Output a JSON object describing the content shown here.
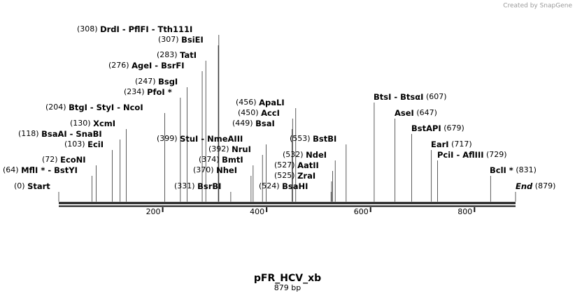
{
  "map": {
    "title": "pFR_HCV_xb",
    "length_label": "879 bp",
    "credit": "Created by SnapGene",
    "length": 879,
    "ticks": [
      200,
      400,
      600,
      800
    ],
    "sites": [
      {
        "pos": "(308)",
        "name": "DrdI  - PflFI  - Tth111I",
        "site": 308
      },
      {
        "pos": "(307)",
        "name": "BsiEI",
        "site": 307
      },
      {
        "pos": "(283)",
        "name": "TatI",
        "site": 283
      },
      {
        "pos": "(276)",
        "name": "AgeI  - BsrFI",
        "site": 276
      },
      {
        "pos": "(247)",
        "name": "BsgI",
        "site": 247
      },
      {
        "pos": "(234)",
        "name": "PfoI *",
        "site": 234
      },
      {
        "pos": "(204)",
        "name": "BtgI  - StyI  - NcoI",
        "site": 204
      },
      {
        "pos": "(130)",
        "name": "XcmI",
        "site": 130
      },
      {
        "pos": "(118)",
        "name": "BsaAI  - SnaBI",
        "site": 118
      },
      {
        "pos": "(103)",
        "name": "EciI",
        "site": 103
      },
      {
        "pos": "(72)",
        "name": "EcoNI",
        "site": 72
      },
      {
        "pos": "(64)",
        "name": "MflI *  - BstYI",
        "site": 64
      },
      {
        "pos": "(0)",
        "name": "Start",
        "site": 0
      },
      {
        "pos": "(399)",
        "name": "StuI  - NmeAIII",
        "site": 399
      },
      {
        "pos": "(392)",
        "name": "NruI",
        "site": 392
      },
      {
        "pos": "(374)",
        "name": "BmtI",
        "site": 374
      },
      {
        "pos": "(370)",
        "name": "NheI",
        "site": 370
      },
      {
        "pos": "(331)",
        "name": "BsrBI",
        "site": 331
      },
      {
        "pos": "(456)",
        "name": "ApaLI",
        "site": 456
      },
      {
        "pos": "(450)",
        "name": "AccI",
        "site": 450
      },
      {
        "pos": "(449)",
        "name": "BsaI",
        "site": 449
      },
      {
        "pos": "(553)",
        "name": "BstBI",
        "site": 553
      },
      {
        "pos": "(532)",
        "name": "NdeI",
        "site": 532
      },
      {
        "pos": "(527)",
        "name": "AatII",
        "site": 527
      },
      {
        "pos": "(525)",
        "name": "ZraI",
        "site": 525
      },
      {
        "pos": "(524)",
        "name": "BsaHI",
        "site": 524
      },
      {
        "pos": "(607)",
        "name": "BtsI  - BtsαI",
        "site": 607
      },
      {
        "pos": "(647)",
        "name": "AseI",
        "site": 647
      },
      {
        "pos": "(679)",
        "name": "BstAPI",
        "site": 679
      },
      {
        "pos": "(717)",
        "name": "EarI",
        "site": 717
      },
      {
        "pos": "(729)",
        "name": "PciI  - AflIII",
        "site": 729
      },
      {
        "pos": "(831)",
        "name": "BclI *",
        "site": 831
      },
      {
        "pos": "(879)",
        "name": "End",
        "site": 879
      }
    ]
  }
}
